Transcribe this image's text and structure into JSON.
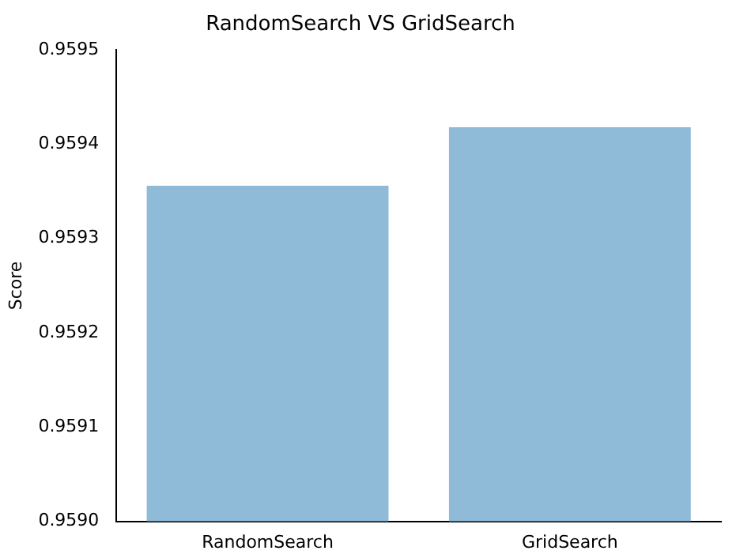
{
  "chart_data": {
    "type": "bar",
    "title": "RandomSearch VS GridSearch",
    "ylabel": "Score",
    "categories": [
      "RandomSearch",
      "GridSearch"
    ],
    "values": [
      0.959356,
      0.959418
    ],
    "color": "#8fbbd9",
    "ylim": [
      0.959,
      0.9595
    ],
    "yticks": [
      {
        "value": 0.959,
        "label": "0.9590"
      },
      {
        "value": 0.9591,
        "label": "0.9591"
      },
      {
        "value": 0.9592,
        "label": "0.9592"
      },
      {
        "value": 0.9593,
        "label": "0.9593"
      },
      {
        "value": 0.9594,
        "label": "0.9594"
      },
      {
        "value": 0.9595,
        "label": "0.9595"
      }
    ],
    "grid": false
  }
}
